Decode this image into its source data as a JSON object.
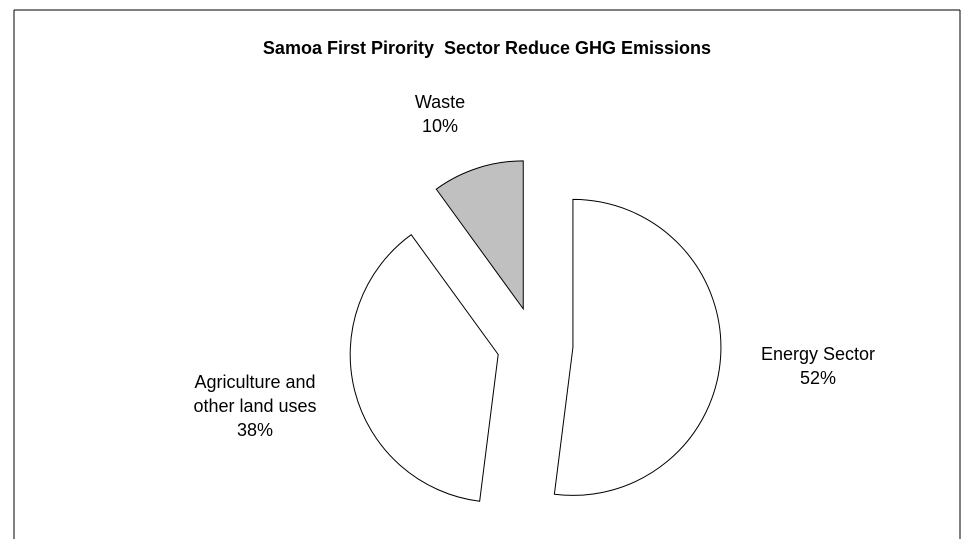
{
  "chart_data": {
    "type": "pie",
    "title": "Samoa First Pirority  Sector Reduce GHG Emissions",
    "categories": [
      "Energy Sector",
      "Agriculture and other land uses",
      "Waste"
    ],
    "values": [
      52,
      38,
      10
    ],
    "value_labels": [
      "52%",
      "38%",
      "10%"
    ],
    "colors": [
      "#ffffff",
      "#ffffff",
      "#c0c0c0"
    ]
  }
}
